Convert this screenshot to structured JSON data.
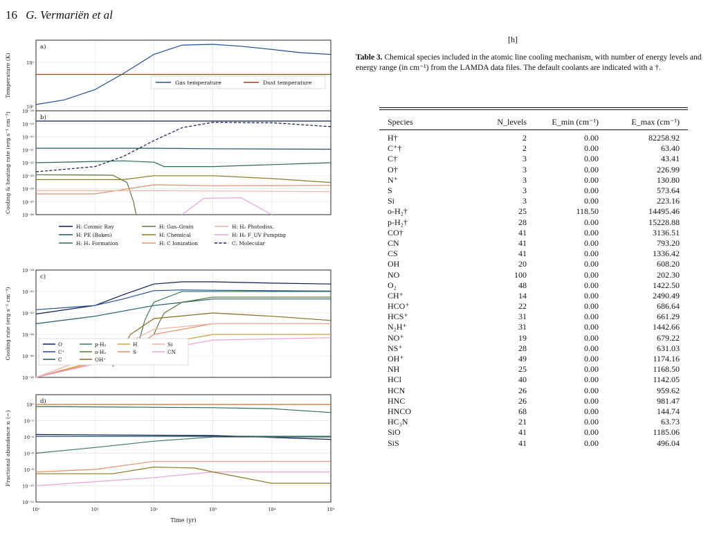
{
  "page": {
    "number": "16",
    "authors": "G. Vermariën et al"
  },
  "marker": "[h]",
  "figure": {
    "time_label": "Time (yr)",
    "panels": [
      {
        "letter": "a)",
        "ylabel": "Temperature (K)",
        "legend": [
          "Gas temperature",
          "Dust temperature"
        ]
      },
      {
        "letter": "b)",
        "ylabel": "Cooling & heating rate (erg s⁻¹ cm⁻³)",
        "legend": [
          "H: Cosmic Ray",
          "H: PE (Bakes)",
          "H: H₂ Formation",
          "H: Gas–Grain",
          "H: Chemical",
          "H: C Ionization",
          "H: H₂ Photodiss.",
          "H: H₂ F_UV Pumping",
          "C: Molecular"
        ]
      },
      {
        "letter": "c)",
        "ylabel": "Cooling rate (erg s⁻¹ cm⁻³)",
        "legend": [
          "O",
          "C⁺",
          "C",
          "p-H₂",
          "o-H₂",
          "OH⁺",
          "H",
          "S",
          "Si",
          "CN"
        ]
      },
      {
        "letter": "d)",
        "ylabel": "Fractional abundance xᵢ (−)"
      }
    ]
  },
  "chart_data": [
    {
      "type": "line",
      "panel": "a",
      "xscale": "log",
      "yscale": "log",
      "xlim": [
        1,
        100000
      ],
      "series": [
        {
          "name": "Gas temperature",
          "color": "#1f4e9c",
          "x": [
            1,
            3,
            10,
            30,
            100,
            300,
            1000,
            3000,
            10000,
            30000,
            100000
          ],
          "y": [
            11,
            14,
            24,
            55,
            150,
            245,
            255,
            230,
            195,
            165,
            150
          ]
        },
        {
          "name": "Dust temperature",
          "color": "#b5380e",
          "x": [
            1,
            100000
          ],
          "y": [
            53,
            53
          ]
        }
      ]
    },
    {
      "type": "line",
      "panel": "b",
      "xscale": "log",
      "yscale": "log",
      "xlim": [
        1,
        100000
      ],
      "series": [
        {
          "name": "H: Cosmic Ray",
          "color": "#0d1b52",
          "x": [
            1,
            100,
            1000,
            100000
          ],
          "y": [
            1.6e-19,
            1.6e-19,
            1.6e-19,
            1.6e-19
          ]
        },
        {
          "name": "H: PE (Bakes)",
          "color": "#1e5a6e",
          "x": [
            1,
            100,
            1000,
            100000
          ],
          "y": [
            1.3e-21,
            1.3e-21,
            1.2e-21,
            1.1e-21
          ]
        },
        {
          "name": "H: H₂ Formation",
          "color": "#2d6a56",
          "x": [
            1,
            30,
            100,
            150,
            1000,
            100000
          ],
          "y": [
            1e-22,
            1.4e-22,
            1.1e-22,
            5e-23,
            5e-23,
            1e-22
          ]
        },
        {
          "name": "H: Gas–Grain",
          "color": "#5a7a38",
          "x": [
            1,
            20,
            35,
            45,
            50
          ],
          "y": [
            1.2e-23,
            1.1e-23,
            3e-24,
            1e-25,
            1e-26
          ]
        },
        {
          "name": "H: Chemical",
          "color": "#8c7a1e",
          "x": [
            1,
            30,
            100,
            1000,
            10000,
            100000
          ],
          "y": [
            5e-24,
            5e-24,
            1e-23,
            1e-23,
            6e-24,
            3e-24
          ]
        },
        {
          "name": "H: C Ionization",
          "color": "#e8906a",
          "x": [
            1,
            10,
            100,
            1000,
            100000
          ],
          "y": [
            4e-25,
            4e-25,
            2e-24,
            1.7e-24,
            1.8e-24
          ]
        },
        {
          "name": "H: H₂ Photodiss.",
          "color": "#f2b3a0",
          "x": [
            1,
            100,
            100000
          ],
          "y": [
            7e-25,
            7e-25,
            6e-25
          ]
        },
        {
          "name": "H: H₂ F_UV Pumping",
          "color": "#f0a0e0",
          "x": [
            300,
            700,
            3000,
            10000
          ],
          "y": [
            1e-26,
            1.8e-25,
            2e-25,
            1e-26
          ]
        },
        {
          "name": "C: Molecular",
          "color": "#0d1b52",
          "x": [
            1,
            10,
            30,
            100,
            300,
            1000,
            10000,
            100000
          ],
          "y": [
            2e-23,
            5e-23,
            3e-22,
            5e-21,
            5e-20,
            1.3e-19,
            1.2e-19,
            6e-20
          ]
        }
      ]
    },
    {
      "type": "line",
      "panel": "c",
      "xscale": "log",
      "yscale": "log",
      "xlim": [
        1,
        100000
      ],
      "series": [
        {
          "name": "O",
          "color": "#0d1b52",
          "x": [
            1,
            10,
            30,
            100,
            300,
            1000,
            10000,
            100000
          ],
          "y": [
            8e-23,
            5e-22,
            5e-21,
            5e-20,
            8e-20,
            8e-20,
            6e-20,
            5e-20
          ]
        },
        {
          "name": "C⁺",
          "color": "#1f4e9c",
          "x": [
            1,
            10,
            30,
            100,
            300,
            1000,
            100000
          ],
          "y": [
            2e-22,
            5e-22,
            2e-21,
            1.2e-20,
            1.4e-20,
            1.3e-20,
            1.1e-20
          ]
        },
        {
          "name": "C",
          "color": "#1e5a6e",
          "x": [
            1,
            10,
            100,
            1000,
            100000
          ],
          "y": [
            1e-23,
            5e-23,
            5e-22,
            2e-21,
            2e-21
          ]
        },
        {
          "name": "p-H₂",
          "color": "#3d7a5e",
          "x": [
            50,
            60,
            70,
            80,
            100,
            300,
            1000,
            10000,
            100000
          ],
          "y": [
            1e-26,
            1e-24,
            2e-23,
            1e-22,
            1e-21,
            1e-20,
            1e-20,
            1e-20,
            1e-20
          ]
        },
        {
          "name": "o-H₂",
          "color": "#5a7a38",
          "x": [
            100,
            120,
            150,
            300,
            1000,
            100000
          ],
          "y": [
            1e-24,
            1e-23,
            1e-22,
            1e-21,
            3e-21,
            3e-21
          ]
        },
        {
          "name": "OH⁺",
          "color": "#8c6a1e",
          "x": [
            20,
            40,
            100,
            1000,
            10000,
            100000
          ],
          "y": [
            1e-27,
            1e-24,
            3e-23,
            1e-22,
            5e-23,
            2e-23
          ]
        },
        {
          "name": "H",
          "color": "#c8a040",
          "x": [
            1,
            100,
            1000,
            100000
          ],
          "y": [
            1e-28,
            1e-25,
            1e-24,
            1e-24
          ]
        },
        {
          "name": "S",
          "color": "#e8906a",
          "x": [
            1,
            30,
            100,
            1000,
            100000
          ],
          "y": [
            1e-28,
            1e-26,
            1e-24,
            1e-23,
            1e-23
          ]
        },
        {
          "name": "Si",
          "color": "#f2b3a0",
          "x": [
            1,
            30,
            100,
            1000,
            100000
          ],
          "y": [
            1e-28,
            1e-25,
            3e-24,
            1e-23,
            1e-23
          ]
        },
        {
          "name": "CN",
          "color": "#f0a0e0",
          "x": [
            1,
            100,
            1000,
            100000
          ],
          "y": [
            1e-28,
            3e-26,
            3e-25,
            5e-25
          ]
        }
      ]
    },
    {
      "type": "line",
      "panel": "d",
      "xscale": "log",
      "yscale": "log",
      "xlim": [
        1,
        100000
      ],
      "series": [
        {
          "x": [
            1,
            100000
          ],
          "y": [
            1.0,
            1.0
          ],
          "color": "#c8702a"
        },
        {
          "x": [
            1,
            1000,
            10000,
            100000
          ],
          "y": [
            0.55,
            0.4,
            0.3,
            0.1
          ],
          "color": "#2d6a56"
        },
        {
          "x": [
            1,
            100000
          ],
          "y": [
            0.00012,
            0.00012
          ],
          "color": "#1e5a6e"
        },
        {
          "x": [
            1,
            1000,
            100000
          ],
          "y": [
            0.0002,
            0.00015,
            5e-05
          ],
          "color": "#0d1b52"
        },
        {
          "x": [
            1,
            10,
            100,
            1000,
            100000
          ],
          "y": [
            1e-06,
            5e-06,
            3e-05,
            0.0001,
            0.0001
          ],
          "color": "#3d7a5e"
        },
        {
          "x": [
            1,
            10,
            100,
            1000,
            10000,
            100000
          ],
          "y": [
            5e-09,
            1e-08,
            1e-07,
            1e-07,
            1e-07,
            1e-07
          ],
          "color": "#e8906a"
        },
        {
          "x": [
            1,
            100,
            1000,
            100000
          ],
          "y": [
            1e-10,
            1e-09,
            5e-09,
            5e-09
          ],
          "color": "#f0a0e0"
        },
        {
          "x": [
            1,
            20,
            100,
            500,
            1000,
            10000,
            100000
          ],
          "y": [
            3e-09,
            3e-09,
            2e-08,
            1.5e-08,
            5e-09,
            2e-10,
            2e-10
          ],
          "color": "#8c7a1e"
        }
      ]
    }
  ],
  "caption": {
    "label": "Table 3.",
    "text": "Chemical species included in the atomic line cooling mechanism, with number of energy levels and energy range (in cm⁻¹) from the LAMDA data files. The default coolants are indicated with a †."
  },
  "table": {
    "headers": [
      "Species",
      "N_levels",
      "E_min (cm⁻¹)",
      "E_max (cm⁻¹)"
    ],
    "rows": [
      [
        "H†",
        "2",
        "0.00",
        "82258.92"
      ],
      [
        "C⁺†",
        "2",
        "0.00",
        "63.40"
      ],
      [
        "C†",
        "3",
        "0.00",
        "43.41"
      ],
      [
        "O†",
        "3",
        "0.00",
        "226.99"
      ],
      [
        "N⁺",
        "3",
        "0.00",
        "130.80"
      ],
      [
        "S",
        "3",
        "0.00",
        "573.64"
      ],
      [
        "Si",
        "3",
        "0.00",
        "223.16"
      ],
      [
        "o-H₂†",
        "25",
        "118.50",
        "14495.46"
      ],
      [
        "p-H₂†",
        "28",
        "0.00",
        "15228.88"
      ],
      [
        "CO†",
        "41",
        "0.00",
        "3136.51"
      ],
      [
        "CN",
        "41",
        "0.00",
        "793.20"
      ],
      [
        "CS",
        "41",
        "0.00",
        "1336.42"
      ],
      [
        "OH",
        "20",
        "0.00",
        "608.20"
      ],
      [
        "NO",
        "100",
        "0.00",
        "202.30"
      ],
      [
        "O₂",
        "48",
        "0.00",
        "1422.50"
      ],
      [
        "CH⁺",
        "14",
        "0.00",
        "2490.49"
      ],
      [
        "HCO⁺",
        "22",
        "0.00",
        "686.64"
      ],
      [
        "HCS⁺",
        "31",
        "0.00",
        "661.29"
      ],
      [
        "N₂H⁺",
        "31",
        "0.00",
        "1442.66"
      ],
      [
        "NO⁺",
        "19",
        "0.00",
        "679.22"
      ],
      [
        "NS⁺",
        "28",
        "0.00",
        "631.03"
      ],
      [
        "OH⁺",
        "49",
        "0.00",
        "1174.16"
      ],
      [
        "NH",
        "25",
        "0.00",
        "1168.50"
      ],
      [
        "HCl",
        "40",
        "0.00",
        "1142.05"
      ],
      [
        "HCN",
        "26",
        "0.00",
        "959.62"
      ],
      [
        "HNC",
        "26",
        "0.00",
        "981.47"
      ],
      [
        "HNCO",
        "68",
        "0.00",
        "144.74"
      ],
      [
        "HC₃N",
        "21",
        "0.00",
        "63.73"
      ],
      [
        "SiO",
        "41",
        "0.00",
        "1185.06"
      ],
      [
        "SiS",
        "41",
        "0.00",
        "496.04"
      ]
    ]
  }
}
